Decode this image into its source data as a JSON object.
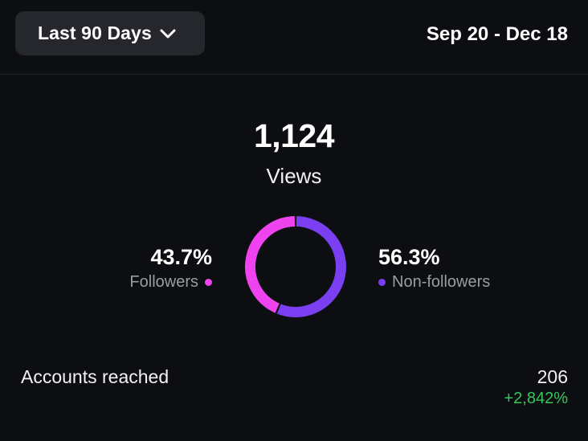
{
  "header": {
    "range_label": "Last 90 Days",
    "date_range": "Sep 20 - Dec 18",
    "dropdown_icon": "chevron-down-icon"
  },
  "summary": {
    "views_count": "1,124",
    "views_label": "Views"
  },
  "breakdown": {
    "followers": {
      "percent": "43.7%",
      "label": "Followers",
      "value": 43.7,
      "color": "#f043f0"
    },
    "non_followers": {
      "percent": "56.3%",
      "label": "Non-followers",
      "value": 56.3,
      "color": "#7b3ff2"
    }
  },
  "accounts_reached": {
    "label": "Accounts reached",
    "value": "206",
    "change": "+2,842%",
    "change_color": "#34c759"
  }
}
